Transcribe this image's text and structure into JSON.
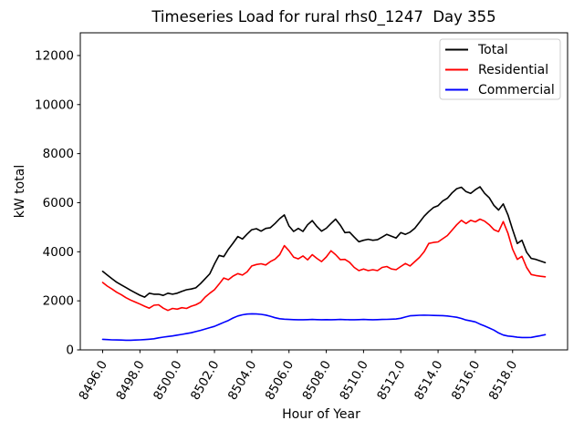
{
  "chart_data": {
    "type": "line",
    "title": "Timeseries Load for rural rhs0_1247  Day 355",
    "xlabel": "Hour of Year",
    "ylabel": "kW total",
    "grid": false,
    "legend_position": "upper right",
    "xlim": [
      8494.8,
      8520.95
    ],
    "ylim": [
      0,
      12926
    ],
    "xticks": [
      8496,
      8498,
      8500,
      8502,
      8504,
      8506,
      8508,
      8510,
      8512,
      8514,
      8516,
      8518
    ],
    "xtick_labels": [
      "8496.0",
      "8498.0",
      "8500.0",
      "8502.0",
      "8504.0",
      "8506.0",
      "8508.0",
      "8510.0",
      "8512.0",
      "8514.0",
      "8516.0",
      "8518.0"
    ],
    "yticks": [
      0,
      2000,
      4000,
      6000,
      8000,
      10000,
      12000
    ],
    "ytick_labels": [
      "0",
      "2000",
      "4000",
      "6000",
      "8000",
      "10000",
      "12000"
    ],
    "x_start": 8496.0,
    "x_step": 0.25,
    "series": [
      {
        "name": "Total",
        "color": "#000000",
        "values": [
          3200,
          3050,
          2900,
          2760,
          2650,
          2540,
          2430,
          2330,
          2230,
          2150,
          2310,
          2270,
          2270,
          2220,
          2310,
          2270,
          2310,
          2390,
          2450,
          2480,
          2530,
          2700,
          2900,
          3100,
          3500,
          3850,
          3800,
          4100,
          4350,
          4620,
          4520,
          4720,
          4900,
          4940,
          4840,
          4950,
          4980,
          5150,
          5350,
          5500,
          5050,
          4830,
          4950,
          4830,
          5100,
          5270,
          5030,
          4840,
          4960,
          5150,
          5330,
          5085,
          4780,
          4800,
          4600,
          4410,
          4470,
          4510,
          4470,
          4490,
          4600,
          4710,
          4630,
          4560,
          4780,
          4710,
          4800,
          4960,
          5200,
          5450,
          5640,
          5800,
          5880,
          6070,
          6180,
          6400,
          6570,
          6630,
          6450,
          6380,
          6530,
          6650,
          6380,
          6200,
          5890,
          5700,
          5950,
          5500,
          4900,
          4340,
          4470,
          3980,
          3730,
          3690,
          3620,
          3560
        ]
      },
      {
        "name": "Residential",
        "color": "#ff0000",
        "values": [
          2750,
          2600,
          2480,
          2350,
          2250,
          2130,
          2030,
          1950,
          1870,
          1780,
          1700,
          1820,
          1840,
          1700,
          1610,
          1690,
          1660,
          1720,
          1690,
          1780,
          1840,
          1940,
          2150,
          2310,
          2450,
          2680,
          2930,
          2860,
          3010,
          3110,
          3050,
          3180,
          3420,
          3480,
          3510,
          3460,
          3600,
          3700,
          3880,
          4250,
          4040,
          3780,
          3710,
          3830,
          3670,
          3880,
          3730,
          3600,
          3790,
          4040,
          3880,
          3680,
          3690,
          3570,
          3360,
          3230,
          3300,
          3230,
          3270,
          3230,
          3360,
          3400,
          3300,
          3270,
          3400,
          3520,
          3420,
          3600,
          3770,
          4000,
          4340,
          4380,
          4400,
          4530,
          4660,
          4880,
          5100,
          5280,
          5150,
          5280,
          5220,
          5330,
          5250,
          5100,
          4900,
          4820,
          5230,
          4750,
          4100,
          3690,
          3815,
          3360,
          3070,
          3030,
          3000,
          2980
        ]
      },
      {
        "name": "Commercial",
        "color": "#0000ff",
        "values": [
          430,
          420,
          410,
          405,
          400,
          395,
          395,
          400,
          410,
          420,
          435,
          455,
          490,
          520,
          545,
          570,
          600,
          630,
          665,
          700,
          745,
          795,
          850,
          905,
          960,
          1040,
          1120,
          1200,
          1300,
          1380,
          1430,
          1460,
          1470,
          1465,
          1450,
          1420,
          1370,
          1310,
          1270,
          1250,
          1240,
          1235,
          1230,
          1230,
          1235,
          1240,
          1235,
          1230,
          1235,
          1230,
          1235,
          1240,
          1235,
          1230,
          1230,
          1235,
          1240,
          1235,
          1230,
          1235,
          1240,
          1245,
          1250,
          1260,
          1290,
          1340,
          1390,
          1400,
          1410,
          1415,
          1410,
          1405,
          1400,
          1395,
          1380,
          1355,
          1330,
          1280,
          1220,
          1180,
          1140,
          1050,
          975,
          890,
          805,
          690,
          604,
          565,
          545,
          515,
          505,
          505,
          510,
          545,
          580,
          620
        ]
      }
    ]
  }
}
